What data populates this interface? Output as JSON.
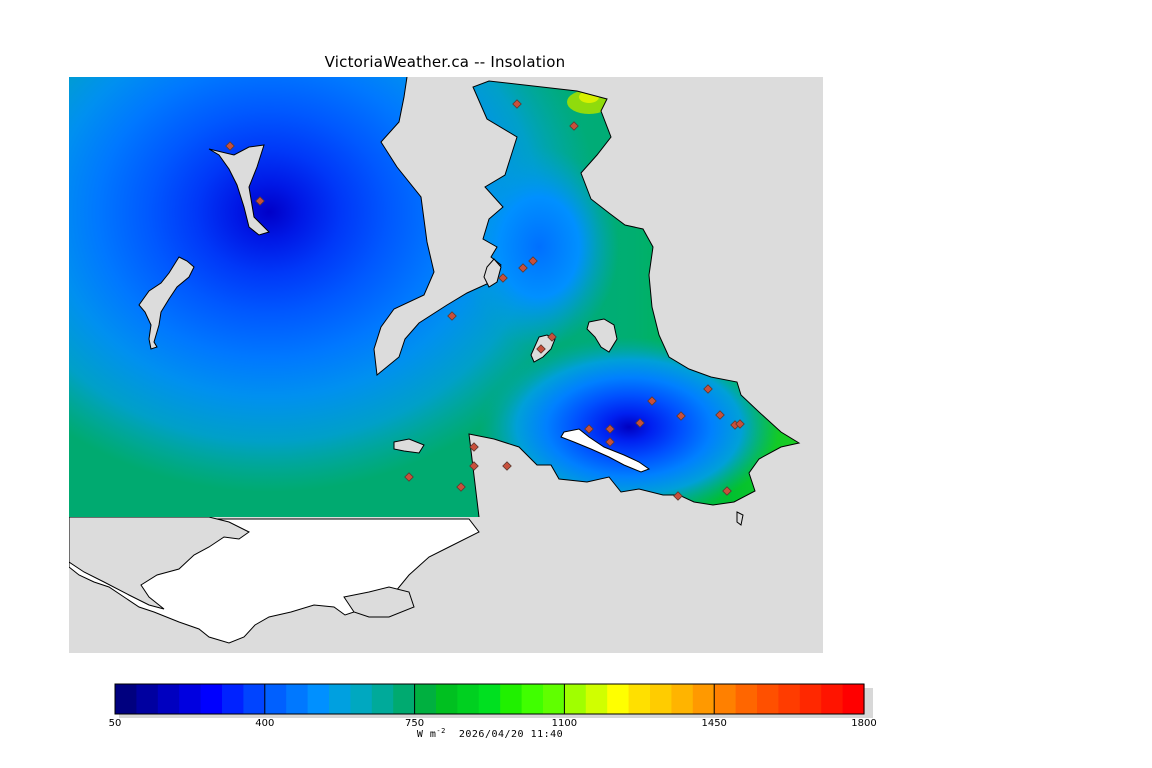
{
  "title": "VictoriaWeather.ca -- Insolation",
  "legend": {
    "min": 50,
    "max": 1800,
    "step": 50,
    "tick_labels": [
      "50",
      "400",
      "750",
      "1100",
      "1450",
      "1800"
    ],
    "unit_base": "W m",
    "unit_exp": "-2",
    "timestamp": "2026/04/20 11:40",
    "colors": [
      "#00007f",
      "#0000a0",
      "#0000c0",
      "#0000e0",
      "#0000ff",
      "#0022ff",
      "#0044ff",
      "#0060ff",
      "#0078ff",
      "#0090ff",
      "#00a0e0",
      "#00a8c0",
      "#00aa9a",
      "#00aa70",
      "#00b040",
      "#00c020",
      "#00d020",
      "#00e020",
      "#20f000",
      "#40ff00",
      "#60ff00",
      "#a0ff00",
      "#d0ff00",
      "#ffff00",
      "#ffe000",
      "#ffcc00",
      "#ffb400",
      "#ff9900",
      "#ff8000",
      "#ff6600",
      "#ff5000",
      "#ff3c00",
      "#ff2800",
      "#ff1400",
      "#ff0000"
    ]
  },
  "map": {
    "land_color": "#dcdcdc",
    "water_color": "#ffffff",
    "station_color": "#c8503c"
  }
}
